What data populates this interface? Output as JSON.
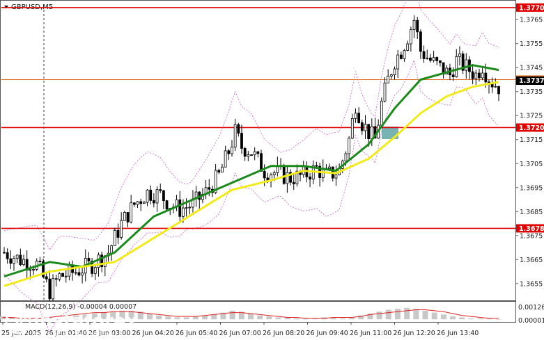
{
  "chart_title": "GBPUSD,M5",
  "chart_data": {
    "type": "candlestick",
    "symbol": "GBPUSD",
    "timeframe": "M5",
    "ylim": [
      1.3648,
      1.3772
    ],
    "y_ticks": [
      "1.3765",
      "1.3755",
      "1.3745",
      "1.3735",
      "1.3725",
      "1.3715",
      "1.3705",
      "1.3695",
      "1.3685",
      "1.3675",
      "1.3665",
      "1.3655"
    ],
    "x_ticks": [
      "25 Jun 2025",
      "26 Jun 01:40",
      "26 Jun 03:00",
      "26 Jun 04:20",
      "26 Jun 05:40",
      "26 Jun 07:00",
      "26 Jun 08:20",
      "26 Jun 09:40",
      "26 Jun 11:00",
      "26 Jun 12:20",
      "26 Jun 13:40"
    ],
    "levels": [
      {
        "value": 1.377,
        "label": "1.3770",
        "color": "#e00000"
      },
      {
        "value": 1.374,
        "label": "1.3740",
        "color": "#e07020"
      },
      {
        "value": 1.372,
        "label": "1.3720",
        "color": "#e00000"
      },
      {
        "value": 1.3678,
        "label": "1.3678",
        "color": "#e00000"
      }
    ],
    "current_price": "1.3737",
    "close_path": [
      [
        0,
        1.3668
      ],
      [
        5,
        1.3665
      ],
      [
        10,
        1.3663
      ],
      [
        14,
        1.3652
      ],
      [
        17,
        1.3658
      ],
      [
        22,
        1.366
      ],
      [
        27,
        1.3663
      ],
      [
        32,
        1.3668
      ],
      [
        36,
        1.368
      ],
      [
        40,
        1.3688
      ],
      [
        44,
        1.3693
      ],
      [
        48,
        1.3692
      ],
      [
        51,
        1.3688
      ],
      [
        54,
        1.3686
      ],
      [
        58,
        1.3688
      ],
      [
        62,
        1.3693
      ],
      [
        66,
        1.37
      ],
      [
        69,
        1.371
      ],
      [
        71,
        1.3718
      ],
      [
        73,
        1.3712
      ],
      [
        76,
        1.371
      ],
      [
        80,
        1.3702
      ],
      [
        84,
        1.3701
      ],
      [
        88,
        1.3699
      ],
      [
        92,
        1.37
      ],
      [
        96,
        1.3703
      ],
      [
        99,
        1.37
      ],
      [
        103,
        1.3702
      ],
      [
        106,
        1.3715
      ],
      [
        108,
        1.373
      ],
      [
        110,
        1.3722
      ],
      [
        112,
        1.3718
      ],
      [
        114,
        1.3715
      ],
      [
        116,
        1.373
      ],
      [
        118,
        1.374
      ],
      [
        120,
        1.3748
      ],
      [
        122,
        1.3752
      ],
      [
        124,
        1.3758
      ],
      [
        126,
        1.3765
      ],
      [
        128,
        1.3752
      ],
      [
        131,
        1.3748
      ],
      [
        134,
        1.3745
      ],
      [
        137,
        1.3742
      ],
      [
        139,
        1.3748
      ],
      [
        142,
        1.3745
      ],
      [
        145,
        1.3742
      ],
      [
        147,
        1.3746
      ],
      [
        149,
        1.374
      ],
      [
        151,
        1.3738
      ],
      [
        152,
        1.3737
      ]
    ],
    "series": [
      {
        "name": "",
        "color": "#1a8a1a",
        "points": [
          [
            0,
            1.3658
          ],
          [
            14,
            1.3664
          ],
          [
            24,
            1.3662
          ],
          [
            34,
            1.3668
          ],
          [
            46,
            1.3683
          ],
          [
            58,
            1.369
          ],
          [
            70,
            1.3697
          ],
          [
            82,
            1.3704
          ],
          [
            92,
            1.3704
          ],
          [
            102,
            1.3702
          ],
          [
            112,
            1.3713
          ],
          [
            120,
            1.3728
          ],
          [
            128,
            1.374
          ],
          [
            136,
            1.3743
          ],
          [
            144,
            1.3746
          ],
          [
            152,
            1.3744
          ]
        ]
      },
      {
        "name": "",
        "color": "#f2ea1a",
        "points": [
          [
            0,
            1.3654
          ],
          [
            14,
            1.366
          ],
          [
            24,
            1.3662
          ],
          [
            34,
            1.3664
          ],
          [
            46,
            1.3674
          ],
          [
            58,
            1.3684
          ],
          [
            70,
            1.3694
          ],
          [
            82,
            1.3698
          ],
          [
            92,
            1.3702
          ],
          [
            102,
            1.3701
          ],
          [
            112,
            1.3707
          ],
          [
            120,
            1.3716
          ],
          [
            128,
            1.3726
          ],
          [
            136,
            1.3733
          ],
          [
            144,
            1.3737
          ],
          [
            152,
            1.3739
          ]
        ]
      }
    ],
    "macd": {
      "label": "MACD(12,26,9) -0.00004 0.00007",
      "y_ticks": [
        "0.00126",
        "0.000015"
      ],
      "ylim": [
        -0.0002,
        0.0014
      ],
      "histogram": [
        0.0003,
        0.0002,
        0.0001,
        0.0,
        0.0001,
        0.0002,
        0.0001,
        0.0002,
        0.0004,
        0.0005,
        0.0006,
        0.0007,
        0.0008,
        0.0009,
        0.0009,
        0.0008,
        0.0006,
        0.0004,
        0.0003,
        0.0002,
        0.0002,
        0.0003,
        0.0004,
        0.0005,
        0.0007,
        0.0009,
        0.0008,
        0.0006,
        0.0004,
        0.0003,
        0.0002,
        0.0002,
        0.0001,
        0.0001,
        0.0001,
        0.0002,
        0.0002,
        0.0001,
        0.0002,
        0.0004,
        0.0006,
        0.0008,
        0.001,
        0.0011,
        0.0012,
        0.0011,
        0.0009,
        0.0007,
        0.0005,
        0.0003,
        0.0002,
        0.0001,
        0.0001,
        0.0001,
        0.0
      ],
      "signal": [
        0.0002,
        0.0002,
        0.0001,
        0.0001,
        0.0001,
        0.0002,
        0.0003,
        0.0004,
        0.0005,
        0.0006,
        0.0007,
        0.0007,
        0.0008,
        0.0008,
        0.0008,
        0.0007,
        0.0006,
        0.0005,
        0.0004,
        0.0003,
        0.0003,
        0.0003,
        0.0004,
        0.0005,
        0.0006,
        0.0007,
        0.0007,
        0.0006,
        0.0005,
        0.0004,
        0.0003,
        0.0002,
        0.0002,
        0.0001,
        0.0001,
        0.0001,
        0.0002,
        0.0002,
        0.0002,
        0.0003,
        0.0005,
        0.0006,
        0.0007,
        0.0008,
        0.0009,
        0.001,
        0.001,
        0.0009,
        0.0008,
        0.0006,
        0.0004,
        0.0003,
        0.0002,
        0.0001,
        0.0001
      ]
    }
  },
  "watermark": {
    "brand": "instaforex",
    "tagline": "Instant Forex Trading"
  },
  "colors": {
    "background": "#ffffff",
    "candle": "#000000",
    "level_red": "#e00000",
    "level_orange": "#e07020",
    "highlight_box": "#4a9a9a",
    "bollinger": "#c060c0",
    "macd_bar": "#c8c8c8",
    "macd_signal": "#e02020"
  }
}
